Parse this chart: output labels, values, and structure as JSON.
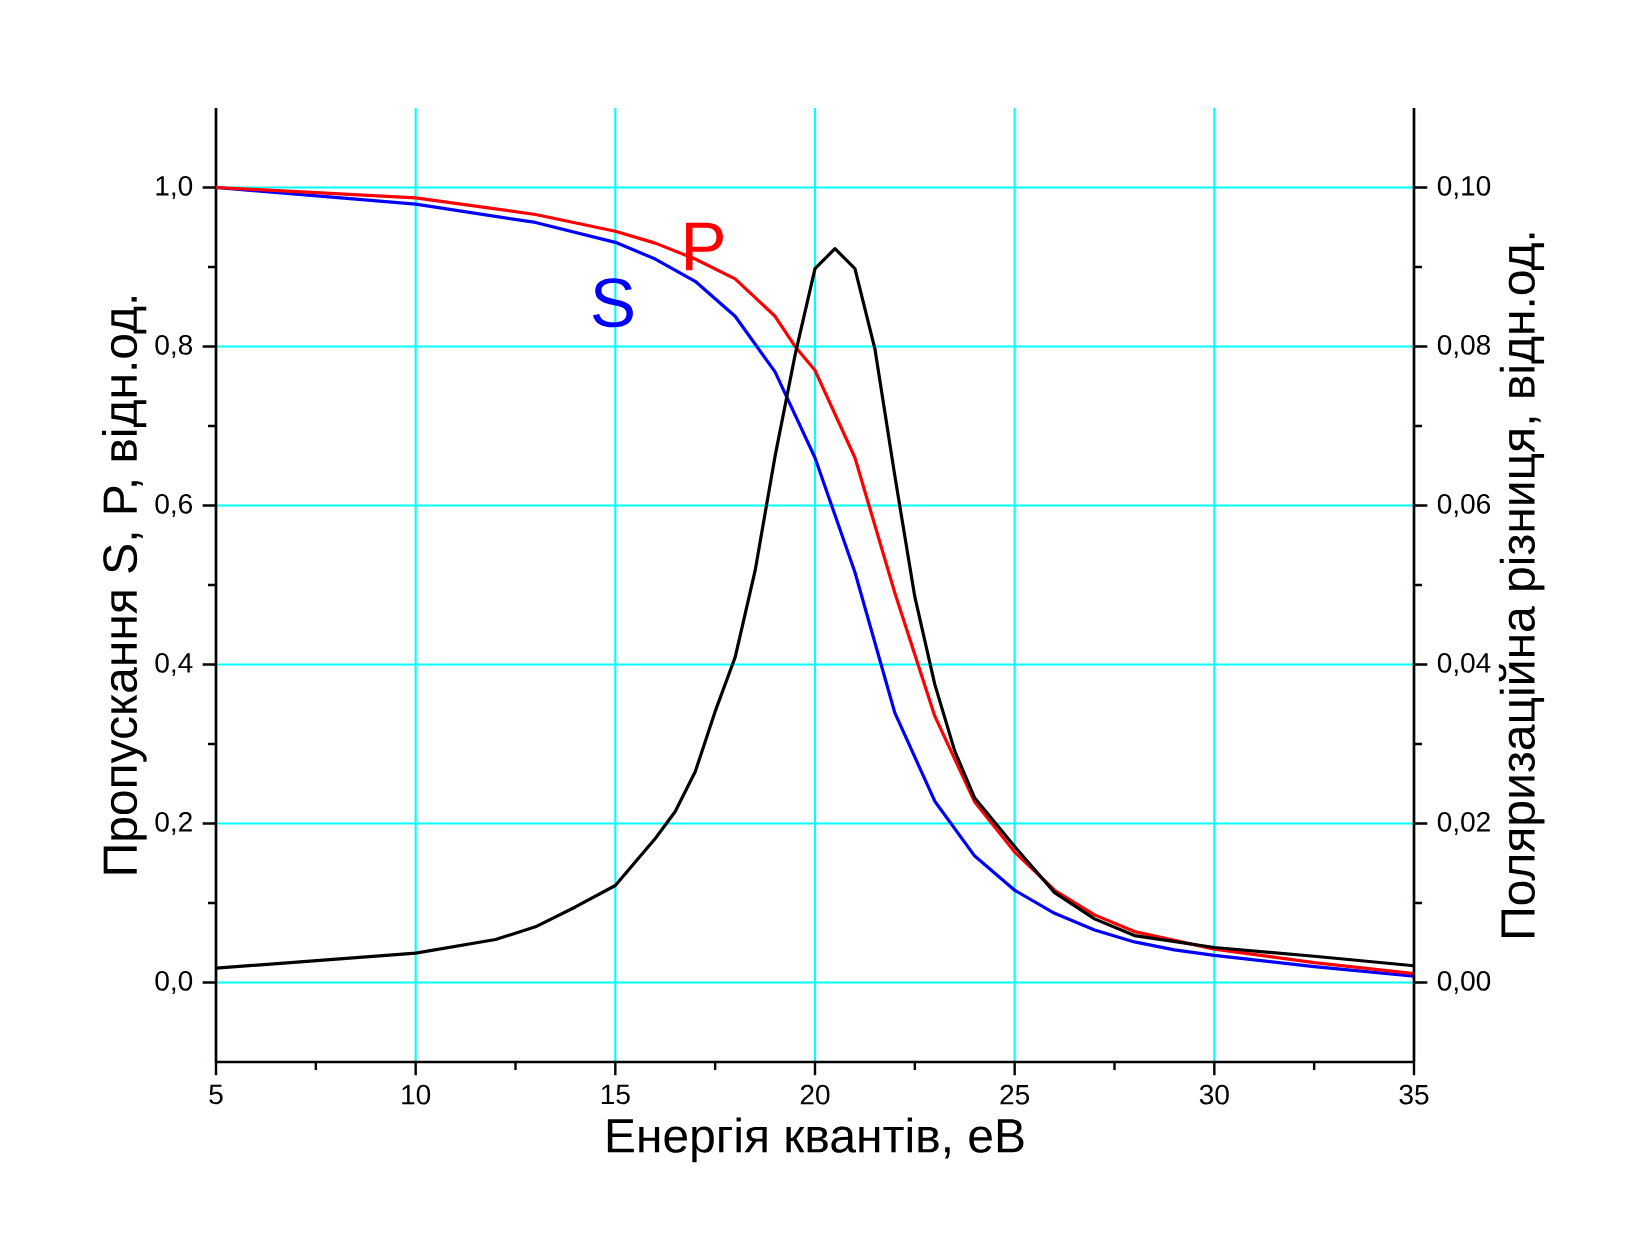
{
  "chart_data": {
    "type": "line",
    "xlabel": "Енергія квантів, еВ",
    "ylabel": "Пропускання S, P, відн.од.",
    "y2label": "Поляризаційна різниця, відн.од.",
    "xlim": [
      5,
      35
    ],
    "xticks": [
      5,
      10,
      15,
      20,
      25,
      30,
      35
    ],
    "ylim": [
      -0.1,
      1.1
    ],
    "yticks": [
      {
        "value": 0,
        "label": "0,0"
      },
      {
        "value": 0.2,
        "label": "0,2"
      },
      {
        "value": 0.4,
        "label": "0,4"
      },
      {
        "value": 0.6,
        "label": "0,6"
      },
      {
        "value": 0.8,
        "label": "0,8"
      },
      {
        "value": 1.0,
        "label": "1,0"
      }
    ],
    "y2lim": [
      -0.01,
      0.11
    ],
    "y2ticks": [
      {
        "value": 0,
        "label": "0,00"
      },
      {
        "value": 0.02,
        "label": "0,02"
      },
      {
        "value": 0.04,
        "label": "0,04"
      },
      {
        "value": 0.06,
        "label": "0,06"
      },
      {
        "value": 0.08,
        "label": "0,08"
      },
      {
        "value": 0.1,
        "label": "0,10"
      }
    ],
    "grid": true,
    "series": [
      {
        "name": "S",
        "color": "#0000ff",
        "x": [
          5,
          10,
          13,
          15,
          16,
          17,
          18,
          19,
          20,
          21,
          22,
          23,
          24,
          25,
          26,
          27,
          28,
          29,
          30,
          32.5,
          35
        ],
        "values": [
          1.0,
          0.979,
          0.956,
          0.931,
          0.91,
          0.882,
          0.838,
          0.768,
          0.66,
          0.516,
          0.339,
          0.228,
          0.159,
          0.116,
          0.087,
          0.066,
          0.051,
          0.041,
          0.034,
          0.02,
          0.008
        ]
      },
      {
        "name": "P",
        "color": "#ff0000",
        "x": [
          5,
          10,
          13,
          15,
          16,
          17,
          18,
          19,
          19.5,
          20,
          21,
          22,
          23,
          24,
          25,
          26,
          27,
          28,
          30,
          32.5,
          35
        ],
        "values": [
          1.0,
          0.987,
          0.966,
          0.945,
          0.93,
          0.91,
          0.885,
          0.838,
          0.8,
          0.77,
          0.66,
          0.49,
          0.335,
          0.227,
          0.164,
          0.116,
          0.085,
          0.064,
          0.042,
          0.025,
          0.011
        ]
      },
      {
        "color": "#000000",
        "axis": "y2",
        "x": [
          5,
          10,
          12,
          13,
          14,
          15,
          16,
          16.5,
          17,
          17.5,
          18,
          18.5,
          19,
          19.5,
          20,
          20.5,
          21,
          21.5,
          22,
          22.5,
          23,
          23.5,
          24,
          25,
          26,
          27,
          28,
          30,
          32.5,
          35
        ],
        "values": [
          0.0018,
          0.0037,
          0.0054,
          0.007,
          0.0095,
          0.0122,
          0.0181,
          0.0215,
          0.0265,
          0.0341,
          0.0409,
          0.0518,
          0.0662,
          0.0789,
          0.0898,
          0.0923,
          0.0898,
          0.0797,
          0.0637,
          0.0485,
          0.0375,
          0.0291,
          0.0232,
          0.0171,
          0.0113,
          0.008,
          0.0059,
          0.0044,
          0.0033,
          0.0021
        ]
      }
    ]
  }
}
